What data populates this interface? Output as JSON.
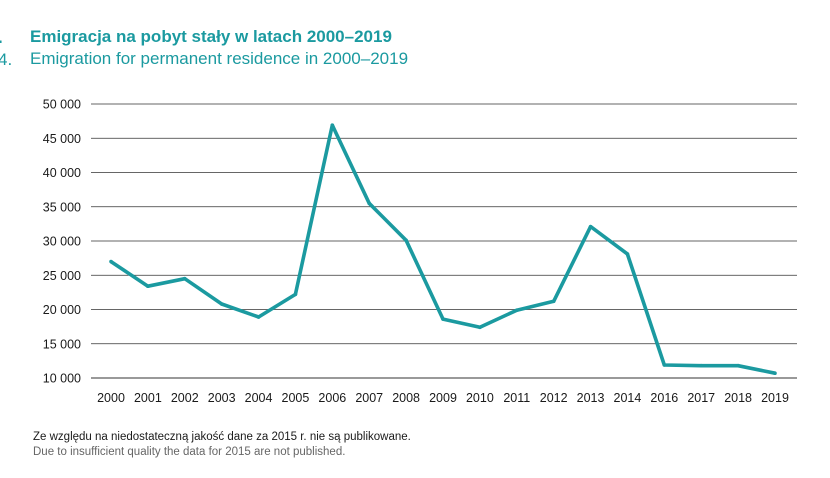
{
  "header": {
    "number_pl": ".",
    "number_en": "4.",
    "title_pl": "Emigracja na pobyt stały w latach 2000–2019",
    "title_en": "Emigration for permanent residence in 2000–2019"
  },
  "notes": {
    "pl": "Ze względu na niedostateczną jakość dane za 2015 r. nie są publikowane.",
    "en": "Due to insufficient quality the data for 2015 are not published."
  },
  "colors": {
    "line": "#1b9aa0",
    "grid": "#333333",
    "title": "#1b9aa0"
  },
  "chart_data": {
    "type": "line",
    "title": "Emigracja na pobyt stały w latach 2000–2019",
    "subtitle": "Emigration for permanent residence in 2000–2019",
    "categories": [
      "2000",
      "2001",
      "2002",
      "2003",
      "2004",
      "2005",
      "2006",
      "2007",
      "2008",
      "2009",
      "2010",
      "2011",
      "2012",
      "2013",
      "2014",
      "2016",
      "2017",
      "2018",
      "2019"
    ],
    "series": [
      {
        "values": [
          27000,
          23400,
          24500,
          20800,
          18900,
          22200,
          46900,
          35500,
          30100,
          18600,
          17400,
          19900,
          21200,
          32100,
          28100,
          11900,
          11800,
          11800,
          10700
        ]
      }
    ],
    "ylim": [
      10000,
      50000
    ],
    "yticks": [
      10000,
      15000,
      20000,
      25000,
      30000,
      35000,
      40000,
      45000,
      50000
    ],
    "ytick_labels": [
      "10 000",
      "15 000",
      "20 000",
      "25 000",
      "30 000",
      "35 000",
      "40 000",
      "45 000",
      "50 000"
    ],
    "grid": true,
    "xlabel": "",
    "ylabel": ""
  }
}
